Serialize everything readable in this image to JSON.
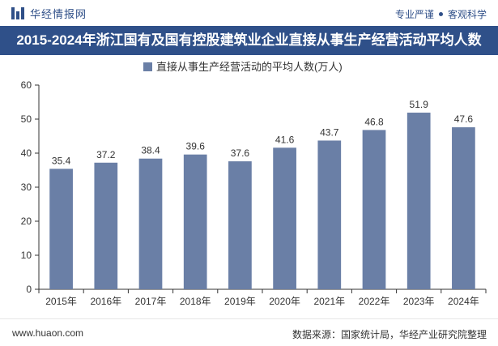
{
  "header": {
    "brand": "华经情报网",
    "tag_left": "专业严谨",
    "tag_right": "客观科学"
  },
  "title": "2015-2024年浙江国有及国有控股建筑业企业直接从事生产经营活动平均人数",
  "footer": {
    "url": "www.huaon.com",
    "source": "数据来源：国家统计局，华经产业研究院整理"
  },
  "colors": {
    "brand_blue": "#2f5089",
    "bar": "#6a7fa6"
  },
  "chart_data": {
    "type": "bar",
    "categories": [
      "2015年",
      "2016年",
      "2017年",
      "2018年",
      "2019年",
      "2020年",
      "2021年",
      "2022年",
      "2023年",
      "2024年"
    ],
    "series": [
      {
        "name": "直接从事生产经营活动的平均人数(万人)",
        "values": [
          35.4,
          37.2,
          38.4,
          39.6,
          37.6,
          41.6,
          43.7,
          46.8,
          51.9,
          47.6
        ],
        "labels": [
          "35.4",
          "37.2",
          "38.4",
          "39.6",
          "37.6",
          "41.6",
          "43.7",
          "46.8",
          "51.9",
          "47.6"
        ]
      }
    ],
    "ylim": [
      0,
      60
    ],
    "yticks": [
      "0",
      "10",
      "20",
      "30",
      "40",
      "50",
      "60"
    ],
    "legend": "top-center",
    "grid": false
  }
}
